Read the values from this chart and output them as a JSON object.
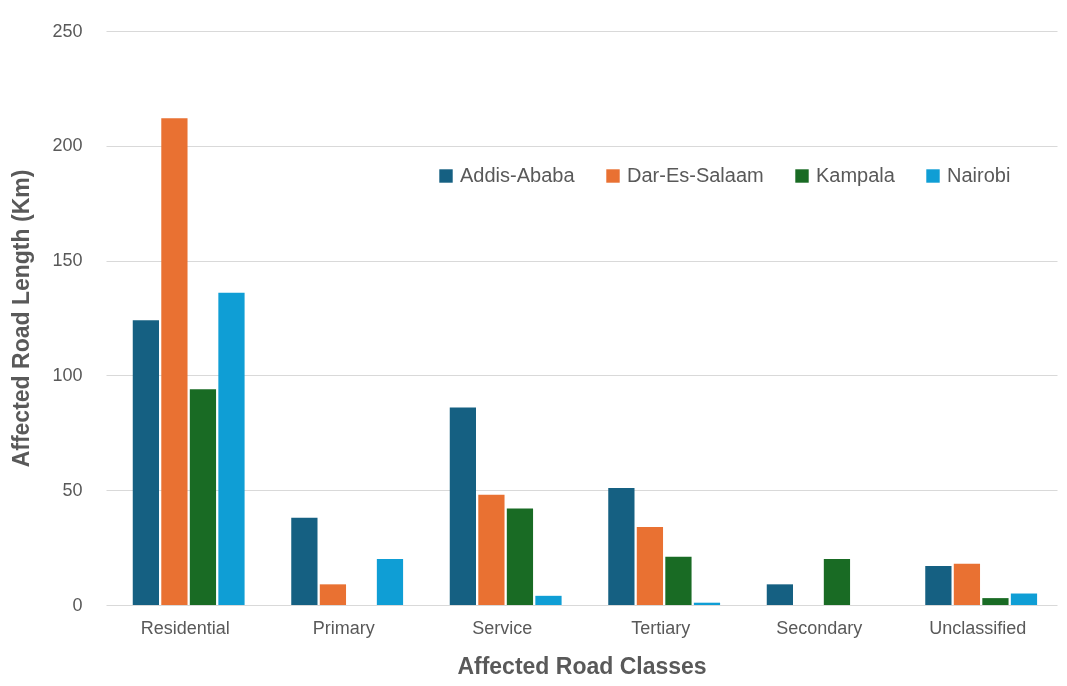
{
  "chart_data": {
    "type": "bar",
    "xlabel": "Affected Road Classes",
    "ylabel": "Affected Road Length (Km)",
    "categories": [
      "Residential",
      "Primary",
      "Service",
      "Tertiary",
      "Secondary",
      "Unclassified"
    ],
    "series": [
      {
        "name": "Addis-Ababa",
        "color": "#156082",
        "values": [
          124,
          38,
          86,
          51,
          9,
          17
        ]
      },
      {
        "name": "Dar-Es-Salaam",
        "color": "#e97132",
        "values": [
          212,
          9,
          48,
          34,
          null,
          18
        ]
      },
      {
        "name": "Kampala",
        "color": "#196b24",
        "values": [
          94,
          null,
          42,
          21,
          20,
          3
        ]
      },
      {
        "name": "Nairobi",
        "color": "#0f9ed5",
        "values": [
          136,
          20,
          4,
          1,
          null,
          5
        ]
      }
    ],
    "ylim": [
      0,
      250
    ],
    "yticks": [
      0,
      50,
      100,
      150,
      200,
      250
    ],
    "grid": "y",
    "legend": "top right"
  }
}
